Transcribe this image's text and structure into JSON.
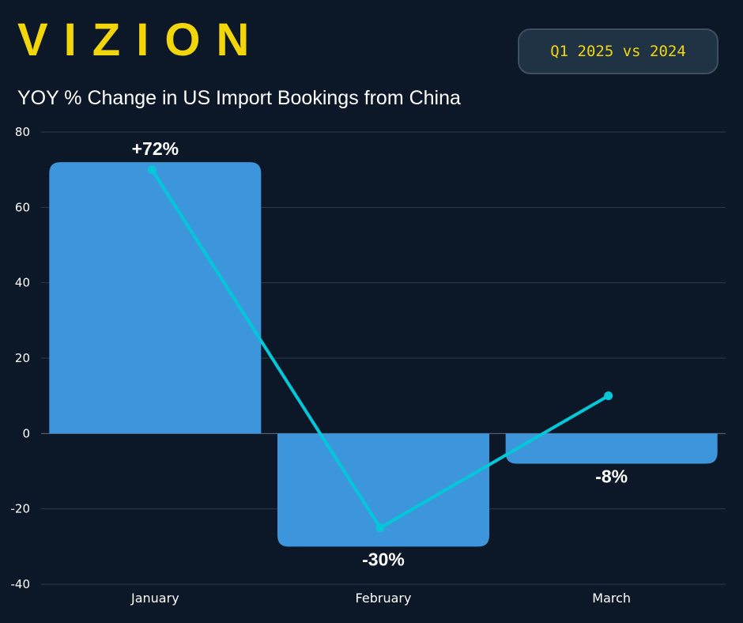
{
  "brand": {
    "logo_text": "VIZION",
    "accent": "#f3d60a"
  },
  "badge": {
    "label": "Q1 2025 vs 2024"
  },
  "chart_data": {
    "type": "bar",
    "title": "YOY % Change in US Import Bookings from China",
    "categories": [
      "January",
      "February",
      "March"
    ],
    "series": [
      {
        "type": "bar",
        "values": [
          72,
          -30,
          -8
        ],
        "labels": [
          "+72%",
          "-30%",
          "-8%"
        ],
        "color": "#3d96dc"
      },
      {
        "type": "line",
        "values": [
          70,
          -25,
          10
        ],
        "color": "#00c8d8"
      }
    ],
    "y_ticks": [
      80,
      60,
      40,
      20,
      0,
      -20,
      -40
    ],
    "ylim": [
      -40,
      80
    ],
    "grid": true,
    "background": "#0c1828"
  }
}
